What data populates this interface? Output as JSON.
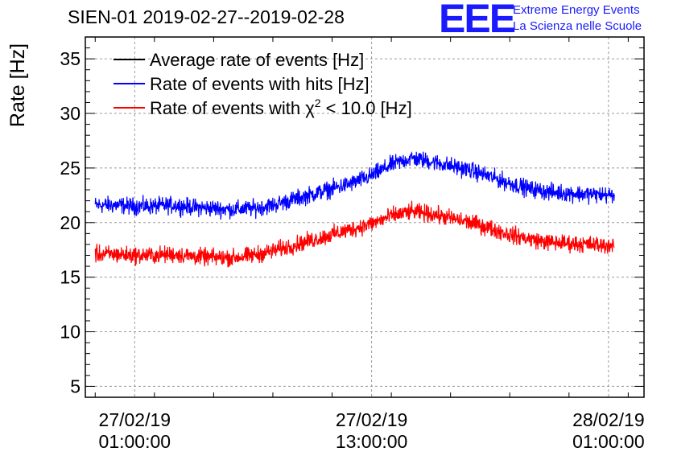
{
  "header": {
    "title": "SIEN-01 2019-02-27--2019-02-28",
    "logo_text": "EEE",
    "brand_line1": "Extreme Energy Events",
    "brand_line2": "La Scienza nelle Scuole"
  },
  "colors": {
    "average": "#000000",
    "hits": "#0000ff",
    "chi2": "#ff0000",
    "brand": "#1a1aff"
  },
  "chart_data": {
    "type": "line",
    "title": "SIEN-01 2019-02-27--2019-02-28",
    "ylabel": "Rate [Hz]",
    "ylim": [
      4,
      37
    ],
    "yticks": [
      5,
      10,
      15,
      20,
      25,
      30,
      35
    ],
    "x_unit": "hours since 27/02/19 00:00",
    "xlim": [
      -1.5,
      26.8
    ],
    "xticks": [
      {
        "x": 1,
        "line1": "27/02/19",
        "line2": "01:00:00"
      },
      {
        "x": 13,
        "line1": "27/02/19",
        "line2": "13:00:00"
      },
      {
        "x": 25,
        "line1": "28/02/19",
        "line2": "01:00:00"
      }
    ],
    "grid": true,
    "legend_position": "top-left",
    "legend": [
      {
        "name": "Average rate of events [Hz]",
        "color": "#000000"
      },
      {
        "name": "Rate of events with hits [Hz]",
        "color": "#0000ff"
      },
      {
        "name": "Rate of events with χ² < 10.0 [Hz]",
        "color": "#ff0000"
      }
    ],
    "series": [
      {
        "name": "Rate of events with hits [Hz]",
        "color": "#0000ff",
        "noise": 0.55,
        "x": [
          -1.0,
          0,
          1,
          2,
          3,
          4,
          5,
          6,
          7,
          8,
          9,
          10,
          11,
          12,
          13,
          14,
          15,
          16,
          17,
          18,
          19,
          20,
          21,
          22,
          23,
          24,
          25.3
        ],
        "y": [
          21.6,
          21.6,
          21.5,
          21.5,
          21.6,
          21.4,
          21.3,
          21.2,
          21.3,
          21.6,
          22.1,
          22.6,
          23.1,
          23.6,
          24.3,
          25.3,
          25.9,
          25.6,
          25.2,
          24.8,
          24.2,
          23.6,
          23.1,
          22.8,
          22.7,
          22.6,
          22.5
        ]
      },
      {
        "name": "Rate of events with χ² < 10.0 [Hz]",
        "color": "#ff0000",
        "noise": 0.55,
        "x": [
          -1.0,
          0,
          1,
          2,
          3,
          4,
          5,
          6,
          7,
          8,
          9,
          10,
          11,
          12,
          13,
          14,
          15,
          16,
          17,
          18,
          19,
          20,
          21,
          22,
          23,
          24,
          25.3
        ],
        "y": [
          17.1,
          17.1,
          17.0,
          17.0,
          17.1,
          16.9,
          16.8,
          16.8,
          17.0,
          17.4,
          17.9,
          18.4,
          18.9,
          19.4,
          19.9,
          20.6,
          21.0,
          20.8,
          20.4,
          20.0,
          19.5,
          18.9,
          18.5,
          18.2,
          18.1,
          18.0,
          17.9
        ]
      }
    ]
  }
}
